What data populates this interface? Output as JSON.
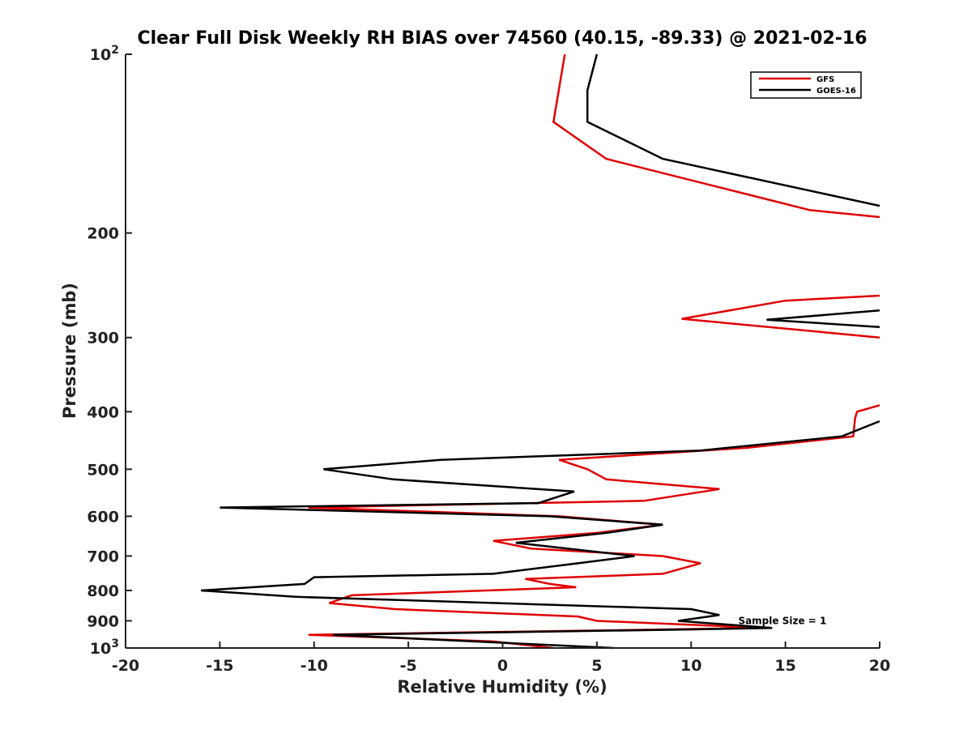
{
  "chart_data": {
    "type": "line",
    "title": "Clear Full Disk Weekly RH BIAS over 74560 (40.15, -89.33) @ 2021-02-16",
    "xlabel": "Relative Humidity (%)",
    "ylabel": "Pressure (mb)",
    "xlim": [
      -20,
      20
    ],
    "ylim": [
      100,
      1000
    ],
    "y_scale": "log",
    "y_reversed": true,
    "grid": false,
    "legend_position": "top-right",
    "xticks": [
      -20,
      -15,
      -10,
      -5,
      0,
      5,
      10,
      15,
      20
    ],
    "yticks": [
      {
        "value": 100,
        "label": "10",
        "sup": "2"
      },
      {
        "value": 200,
        "label": "200",
        "sup": ""
      },
      {
        "value": 300,
        "label": "300",
        "sup": ""
      },
      {
        "value": 400,
        "label": "400",
        "sup": ""
      },
      {
        "value": 500,
        "label": "500",
        "sup": ""
      },
      {
        "value": 600,
        "label": "600",
        "sup": ""
      },
      {
        "value": 700,
        "label": "700",
        "sup": ""
      },
      {
        "value": 800,
        "label": "800",
        "sup": ""
      },
      {
        "value": 900,
        "label": "900",
        "sup": ""
      },
      {
        "value": 1000,
        "label": "10",
        "sup": "3"
      }
    ],
    "annotation": {
      "text": "Sample Size = 1",
      "x": 12.5,
      "y": 900
    },
    "series": [
      {
        "name": "GFS",
        "color": "#e00000",
        "segments": [
          [
            [
              3.3,
              100
            ],
            [
              2.7,
              130
            ],
            [
              5.5,
              150
            ],
            [
              16.3,
              183
            ],
            [
              20,
              188
            ]
          ],
          [
            [
              20,
              255
            ],
            [
              15,
              260
            ],
            [
              9.5,
              279
            ],
            [
              20,
              300
            ]
          ],
          [
            [
              20,
              390
            ],
            [
              18.8,
              400
            ],
            [
              18.7,
              410
            ],
            [
              18.6,
              440
            ],
            [
              13,
              460
            ],
            [
              3.0,
              482
            ],
            [
              4.5,
              500
            ],
            [
              5.5,
              520
            ],
            [
              11.5,
              540
            ],
            [
              7.5,
              565
            ],
            [
              -10.3,
              580
            ],
            [
              3.0,
              600
            ],
            [
              8.5,
              620
            ],
            [
              5.0,
              640
            ],
            [
              -0.5,
              660
            ],
            [
              1.5,
              680
            ],
            [
              8.5,
              700
            ],
            [
              10.5,
              720
            ],
            [
              8.5,
              750
            ],
            [
              1.2,
              765
            ],
            [
              2.5,
              780
            ],
            [
              3.9,
              790
            ],
            [
              -8.0,
              815
            ],
            [
              -9.2,
              840
            ],
            [
              -5.7,
              860
            ],
            [
              4.0,
              885
            ],
            [
              5.0,
              900
            ],
            [
              14.0,
              925
            ],
            [
              -10.3,
              950
            ],
            [
              -0.5,
              975
            ],
            [
              2.7,
              1000
            ]
          ]
        ]
      },
      {
        "name": "GOES-16",
        "color": "#000000",
        "segments": [
          [
            [
              5.0,
              100
            ],
            [
              4.5,
              115
            ],
            [
              4.5,
              130
            ],
            [
              8.5,
              150
            ],
            [
              20,
              180
            ]
          ],
          [
            [
              20,
              270
            ],
            [
              14.0,
              280
            ],
            [
              20,
              288
            ]
          ],
          [
            [
              20,
              415
            ],
            [
              18.0,
              440
            ],
            [
              10.5,
              465
            ],
            [
              -3.3,
              482
            ],
            [
              -9.5,
              500
            ],
            [
              -5.8,
              520
            ],
            [
              3.8,
              545
            ],
            [
              1.9,
              570
            ],
            [
              -15,
              580
            ],
            [
              2.5,
              600
            ],
            [
              8.5,
              620
            ],
            [
              5.5,
              640
            ],
            [
              0.7,
              665
            ],
            [
              7.0,
              700
            ],
            [
              4.0,
              720
            ],
            [
              -0.5,
              750
            ],
            [
              -10.0,
              760
            ],
            [
              -10.5,
              780
            ],
            [
              -16.0,
              800
            ],
            [
              -11.0,
              820
            ],
            [
              10.0,
              860
            ],
            [
              11.5,
              880
            ],
            [
              9.3,
              900
            ],
            [
              14.3,
              925
            ],
            [
              10.5,
              930
            ],
            [
              -9.0,
              950
            ],
            [
              5.9,
              1000
            ]
          ]
        ]
      }
    ]
  }
}
